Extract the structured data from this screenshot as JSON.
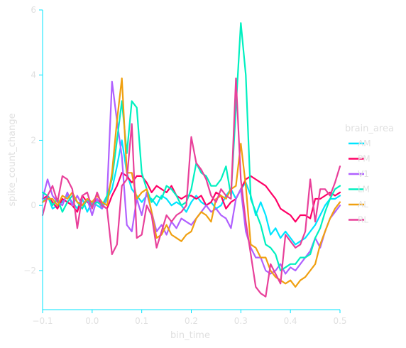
{
  "chart_data": {
    "type": "line",
    "title": "",
    "xlabel": "bin_time",
    "ylabel": "spike_count_change",
    "xlim": [
      -0.1,
      0.5
    ],
    "ylim": [
      -3.2,
      6.0
    ],
    "x_ticks": [
      -0.1,
      0.0,
      0.1,
      0.2,
      0.3,
      0.4,
      0.5
    ],
    "x_tick_labels": [
      "−0.1",
      "0.0",
      "0.1",
      "0.2",
      "0.3",
      "0.4",
      "0.5"
    ],
    "y_ticks": [
      -2,
      0,
      2,
      4,
      6
    ],
    "y_tick_labels": [
      "−2",
      "0",
      "2",
      "4",
      "6"
    ],
    "grid": false,
    "legend": {
      "title": "brain_area",
      "placement": "right"
    },
    "axis_color": "#00e5ff",
    "x": [
      -0.1,
      -0.09,
      -0.08,
      -0.07,
      -0.06,
      -0.05,
      -0.04,
      -0.03,
      -0.02,
      -0.01,
      0.0,
      0.01,
      0.02,
      0.03,
      0.04,
      0.05,
      0.06,
      0.07,
      0.08,
      0.09,
      0.1,
      0.11,
      0.12,
      0.13,
      0.14,
      0.15,
      0.16,
      0.17,
      0.18,
      0.19,
      0.2,
      0.21,
      0.22,
      0.23,
      0.24,
      0.25,
      0.26,
      0.27,
      0.28,
      0.29,
      0.3,
      0.31,
      0.32,
      0.33,
      0.34,
      0.35,
      0.36,
      0.37,
      0.38,
      0.39,
      0.4,
      0.41,
      0.42,
      0.43,
      0.44,
      0.45,
      0.46,
      0.47,
      0.48,
      0.49,
      0.5
    ],
    "series": [
      {
        "name": "AM",
        "color": "#00e5ff",
        "values": [
          0.1,
          0.3,
          -0.1,
          0.0,
          0.1,
          0.3,
          0.1,
          -0.1,
          0.2,
          -0.2,
          0.1,
          0.0,
          -0.1,
          0.2,
          0.5,
          1.2,
          2.0,
          1.0,
          0.5,
          0.3,
          0.1,
          0.3,
          0.2,
          0.0,
          0.3,
          0.2,
          0.0,
          0.1,
          0.0,
          -0.2,
          0.1,
          0.3,
          0.1,
          0.0,
          0.1,
          -0.1,
          0.0,
          0.3,
          0.5,
          0.2,
          0.5,
          0.7,
          0.3,
          -0.3,
          0.1,
          -0.3,
          -0.9,
          -0.7,
          -1.0,
          -0.8,
          -1.0,
          -1.2,
          -1.1,
          -1.0,
          -0.8,
          -0.6,
          -0.3,
          0.0,
          0.2,
          0.2,
          0.3
        ]
      },
      {
        "name": "PM",
        "color": "#ff0066",
        "values": [
          0.2,
          0.3,
          0.1,
          -0.1,
          0.2,
          0.1,
          0.0,
          -0.2,
          0.3,
          0.1,
          0.0,
          0.2,
          0.0,
          -0.1,
          0.3,
          0.6,
          1.0,
          0.9,
          0.7,
          0.9,
          0.9,
          0.7,
          0.4,
          0.6,
          0.5,
          0.4,
          0.6,
          0.3,
          0.2,
          0.3,
          0.3,
          0.2,
          0.3,
          0.0,
          0.1,
          0.4,
          0.3,
          -0.1,
          0.1,
          0.2,
          0.5,
          0.8,
          0.9,
          0.8,
          0.7,
          0.6,
          0.4,
          0.2,
          -0.1,
          -0.2,
          -0.3,
          -0.5,
          -0.3,
          -0.3,
          -0.4,
          0.2,
          0.2,
          0.3,
          0.4,
          0.3,
          0.4
        ]
      },
      {
        "name": "V1",
        "color": "#b060ff",
        "values": [
          0.2,
          0.8,
          0.3,
          0.1,
          0.0,
          0.4,
          0.0,
          0.3,
          0.0,
          0.2,
          -0.3,
          0.2,
          -0.1,
          0.3,
          3.8,
          2.6,
          1.5,
          -0.6,
          -0.8,
          0.2,
          -0.3,
          0.4,
          -0.2,
          -0.8,
          -0.6,
          -0.9,
          -0.5,
          -0.7,
          -0.4,
          -0.5,
          -0.6,
          -0.4,
          -0.2,
          0.0,
          -0.2,
          -0.1,
          -0.3,
          -0.4,
          -0.7,
          0.2,
          0.5,
          -0.8,
          -1.3,
          -1.6,
          -1.6,
          -2.0,
          -2.1,
          -2.0,
          -1.8,
          -2.1,
          -1.9,
          -2.0,
          -1.8,
          -1.6,
          -1.4,
          -1.0,
          -1.3,
          -0.8,
          -0.4,
          -0.2,
          0.0
        ]
      },
      {
        "name": "LM",
        "color": "#00f0c0",
        "values": [
          0.4,
          0.3,
          0.0,
          0.2,
          -0.2,
          0.1,
          0.3,
          0.1,
          -0.1,
          0.2,
          0.0,
          0.1,
          0.0,
          0.3,
          0.8,
          2.0,
          3.2,
          1.6,
          3.2,
          3.0,
          1.0,
          0.5,
          0.1,
          0.3,
          0.2,
          0.6,
          0.5,
          0.3,
          0.0,
          0.1,
          0.5,
          1.3,
          1.0,
          0.9,
          0.6,
          0.6,
          0.8,
          1.2,
          0.3,
          3.0,
          5.6,
          4.0,
          0.2,
          -0.2,
          -0.6,
          -1.2,
          -1.3,
          -1.5,
          -2.0,
          -1.9,
          -1.8,
          -1.8,
          -1.6,
          -1.6,
          -1.5,
          -1.0,
          -0.7,
          -0.2,
          0.2,
          0.5,
          0.6
        ]
      },
      {
        "name": "AL",
        "color": "#f0a010",
        "values": [
          0.1,
          0.2,
          0.2,
          0.0,
          0.3,
          0.2,
          0.4,
          0.1,
          0.0,
          0.2,
          0.1,
          0.3,
          0.1,
          0.0,
          1.0,
          2.6,
          3.9,
          1.0,
          1.0,
          0.2,
          0.4,
          0.5,
          -0.2,
          -1.0,
          -0.9,
          -0.6,
          -0.9,
          -1.0,
          -1.1,
          -0.9,
          -0.8,
          -0.4,
          -0.2,
          -0.3,
          -0.5,
          0.2,
          0.3,
          0.2,
          0.5,
          0.6,
          1.9,
          0.6,
          -1.2,
          -1.3,
          -1.6,
          -1.6,
          -2.0,
          -2.2,
          -2.3,
          -2.4,
          -2.3,
          -2.5,
          -2.3,
          -2.2,
          -2.0,
          -1.8,
          -1.2,
          -0.8,
          -0.4,
          -0.1,
          0.1
        ]
      },
      {
        "name": "RL",
        "color": "#e8409a",
        "values": [
          -0.3,
          0.3,
          0.6,
          0.1,
          0.9,
          0.8,
          0.5,
          -0.7,
          0.3,
          0.4,
          -0.1,
          0.4,
          0.0,
          -0.1,
          -1.5,
          -1.2,
          0.6,
          0.8,
          2.5,
          -1.0,
          -0.9,
          0.0,
          -0.3,
          -1.3,
          -0.8,
          -0.3,
          -0.5,
          -0.3,
          -0.2,
          0.0,
          2.1,
          1.3,
          1.1,
          0.8,
          0.3,
          0.1,
          0.5,
          0.3,
          0.2,
          3.9,
          0.8,
          -0.5,
          -1.5,
          -2.5,
          -2.7,
          -2.8,
          -1.8,
          -2.1,
          -2.4,
          -0.9,
          -1.1,
          -1.3,
          -1.2,
          -0.8,
          0.8,
          -0.5,
          0.5,
          0.5,
          0.3,
          0.7,
          1.2
        ]
      }
    ]
  }
}
